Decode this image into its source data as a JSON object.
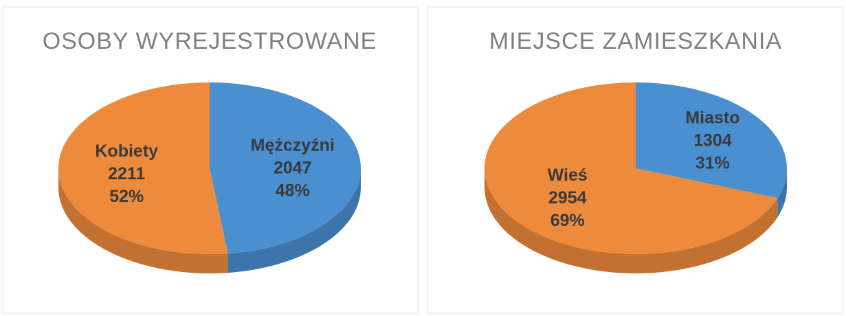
{
  "chart_data": [
    {
      "type": "pie",
      "title": "OSOBY WYREJESTROWANE",
      "categories": [
        "Mężczyźni",
        "Kobiety"
      ],
      "values": [
        2047,
        2211
      ],
      "percent_values": [
        48,
        52
      ],
      "percent_labels": [
        "48%",
        "52%"
      ],
      "colors": [
        "#4a8fd0",
        "#ee8a3c"
      ]
    },
    {
      "type": "pie",
      "title": "MIEJSCE ZAMIESZKANIA",
      "categories": [
        "Miasto",
        "Wieś"
      ],
      "values": [
        1304,
        2954
      ],
      "percent_values": [
        31,
        69
      ],
      "percent_labels": [
        "31%",
        "69%"
      ],
      "colors": [
        "#4a8fd0",
        "#ee8a3c"
      ]
    }
  ]
}
